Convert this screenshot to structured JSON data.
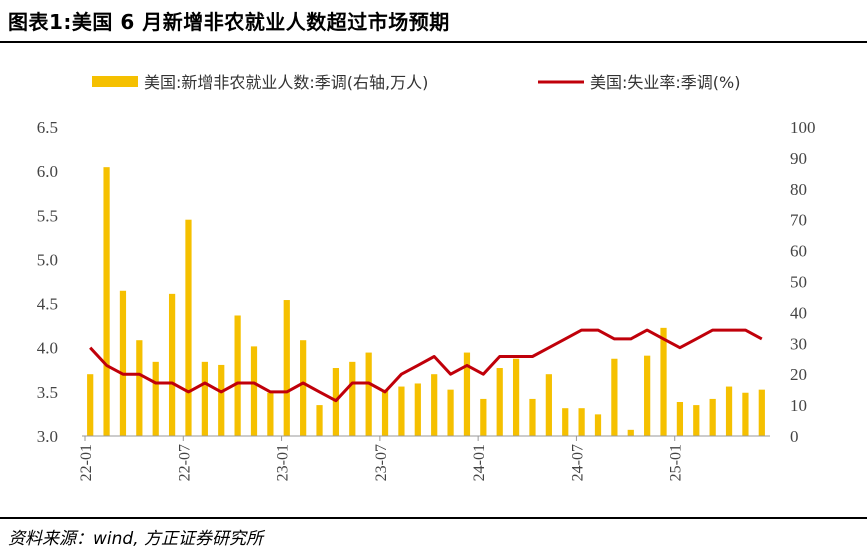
{
  "header": {
    "title": "图表1:美国 6 月新增非农就业人数超过市场预期"
  },
  "footer": {
    "source": "资料来源：wind, 方正证券研究所"
  },
  "colors": {
    "bar": "#F5C000",
    "line": "#C0000A",
    "axis": "#999999"
  },
  "chart_data": {
    "type": "bar",
    "title": "",
    "xlabel": "",
    "ylabel": "",
    "y_left_range": [
      3.0,
      6.5
    ],
    "y_right_range": [
      0,
      100
    ],
    "y_left_ticks": [
      "6.5",
      "6.0",
      "5.5",
      "5.0",
      "4.5",
      "4.0",
      "3.5",
      "3.0"
    ],
    "y_right_ticks": [
      "100",
      "90",
      "80",
      "70",
      "60",
      "50",
      "40",
      "30",
      "20",
      "10",
      "0"
    ],
    "x_tick_labels": [
      "22-01",
      "22-07",
      "23-01",
      "23-07",
      "24-01",
      "24-07",
      "25-01"
    ],
    "x": [
      "22-01",
      "22-02",
      "22-03",
      "22-04",
      "22-05",
      "22-06",
      "22-07",
      "22-08",
      "22-09",
      "22-10",
      "22-11",
      "22-12",
      "23-01",
      "23-02",
      "23-03",
      "23-04",
      "23-05",
      "23-06",
      "23-07",
      "23-08",
      "23-09",
      "23-10",
      "23-11",
      "23-12",
      "24-01",
      "24-02",
      "24-03",
      "24-04",
      "24-05",
      "24-06",
      "24-07",
      "24-08",
      "24-09",
      "24-10",
      "24-11",
      "24-12",
      "25-01",
      "25-02",
      "25-03",
      "25-04",
      "25-05",
      "25-06"
    ],
    "legend_position": "top",
    "series": [
      {
        "name": "美国:新增非农就业人数:季调(右轴,万人)",
        "type": "bar",
        "axis": "right",
        "values": [
          20,
          87,
          47,
          31,
          24,
          46,
          70,
          24,
          23,
          39,
          29,
          14,
          44,
          31,
          10,
          22,
          24,
          27,
          15,
          16,
          17,
          20,
          15,
          27,
          12,
          22,
          25,
          12,
          20,
          9,
          9,
          7,
          25,
          2,
          26,
          35,
          11,
          10,
          12,
          16,
          14,
          15
        ]
      },
      {
        "name": "美国:失业率:季调(%)",
        "type": "line",
        "axis": "left",
        "values": [
          4.0,
          3.8,
          3.7,
          3.7,
          3.6,
          3.6,
          3.5,
          3.6,
          3.5,
          3.6,
          3.6,
          3.5,
          3.5,
          3.6,
          3.5,
          3.4,
          3.6,
          3.6,
          3.5,
          3.7,
          3.8,
          3.9,
          3.7,
          3.8,
          3.7,
          3.9,
          3.9,
          3.9,
          4.0,
          4.1,
          4.2,
          4.2,
          4.1,
          4.1,
          4.2,
          4.1,
          4.0,
          4.1,
          4.2,
          4.2,
          4.2,
          4.1
        ]
      }
    ]
  }
}
